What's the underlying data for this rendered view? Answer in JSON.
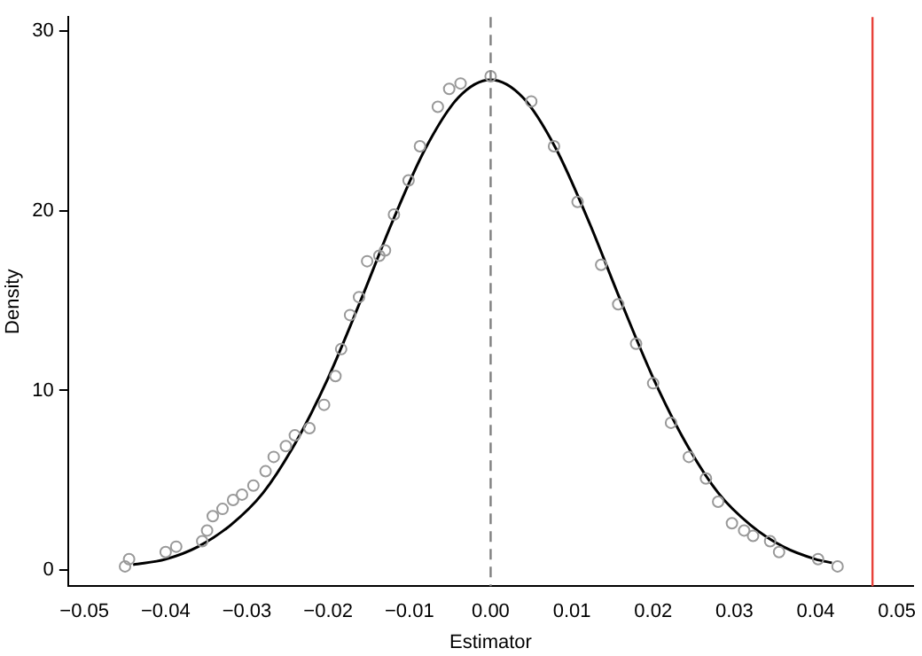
{
  "chart_data": {
    "type": "scatter",
    "xlabel": "Estimator",
    "ylabel": "Density",
    "xlim": [
      -0.052,
      0.052
    ],
    "ylim": [
      -0.9,
      30.8
    ],
    "xticks": [
      {
        "value": -0.05,
        "label": "−0.05"
      },
      {
        "value": -0.04,
        "label": "−0.04"
      },
      {
        "value": -0.03,
        "label": "−0.03"
      },
      {
        "value": -0.02,
        "label": "−0.02"
      },
      {
        "value": -0.01,
        "label": "−0.01"
      },
      {
        "value": 0,
        "label": "0.00"
      },
      {
        "value": 0.01,
        "label": "0.01"
      },
      {
        "value": 0.02,
        "label": "0.02"
      },
      {
        "value": 0.03,
        "label": "0.03"
      },
      {
        "value": 0.04,
        "label": "0.04"
      },
      {
        "value": 0.05,
        "label": "0.05"
      }
    ],
    "yticks": [
      0,
      10,
      20,
      30
    ],
    "grid": false,
    "legend": false,
    "marker": "circle",
    "series": [
      {
        "type": "line",
        "color": "#000000",
        "marker": "none",
        "x": [
          -0.044,
          -0.04,
          -0.036,
          -0.032,
          -0.028,
          -0.024,
          -0.02,
          -0.016,
          -0.012,
          -0.008,
          -0.004,
          0,
          0.004,
          0.008,
          0.012,
          0.016,
          0.02,
          0.024,
          0.028,
          0.032,
          0.036,
          0.04,
          0.042
        ],
        "values": [
          0.3,
          0.6,
          1.3,
          2.5,
          4.3,
          7.1,
          10.7,
          15.0,
          19.5,
          23.5,
          26.3,
          27.3,
          26.3,
          23.5,
          19.5,
          15.0,
          10.7,
          7.1,
          4.3,
          2.5,
          1.3,
          0.6,
          0.4
        ]
      },
      {
        "type": "scatter",
        "color": "#999999",
        "x": [
          -0.045,
          -0.0445,
          -0.04,
          -0.0387,
          -0.0355,
          -0.0349,
          -0.0342,
          -0.033,
          -0.0317,
          -0.0306,
          -0.0292,
          -0.0277,
          -0.0267,
          -0.0252,
          -0.0241,
          -0.0223,
          -0.0205,
          -0.0191,
          -0.0184,
          -0.0173,
          -0.0162,
          -0.0152,
          -0.0137,
          -0.013,
          -0.0119,
          -0.0101,
          -0.0087,
          -0.0065,
          -0.0051,
          -0.0037,
          0,
          0.005,
          0.0078,
          0.0107,
          0.0136,
          0.0157,
          0.0179,
          0.02,
          0.0222,
          0.0244,
          0.0265,
          0.028,
          0.0297,
          0.0312,
          0.0323,
          0.0344,
          0.0355,
          0.0403,
          0.0427
        ],
        "values": [
          0.2,
          0.6,
          1.0,
          1.3,
          1.6,
          2.2,
          3.0,
          3.4,
          3.9,
          4.2,
          4.7,
          5.5,
          6.3,
          6.9,
          7.5,
          7.9,
          9.2,
          10.8,
          12.3,
          14.2,
          15.2,
          17.2,
          17.5,
          17.8,
          19.8,
          21.7,
          23.6,
          25.8,
          26.8,
          27.1,
          27.5,
          26.1,
          23.6,
          20.5,
          17.0,
          14.8,
          12.6,
          10.4,
          8.2,
          6.3,
          5.1,
          3.8,
          2.6,
          2.2,
          1.9,
          1.6,
          1.0,
          0.6,
          0.2
        ]
      }
    ],
    "ref_lines": [
      {
        "axis": "x",
        "value": 0,
        "color": "#808080",
        "line_style": "dashed"
      },
      {
        "axis": "x",
        "value": 0.047,
        "color": "#e8413a",
        "line_style": "solid"
      }
    ]
  }
}
